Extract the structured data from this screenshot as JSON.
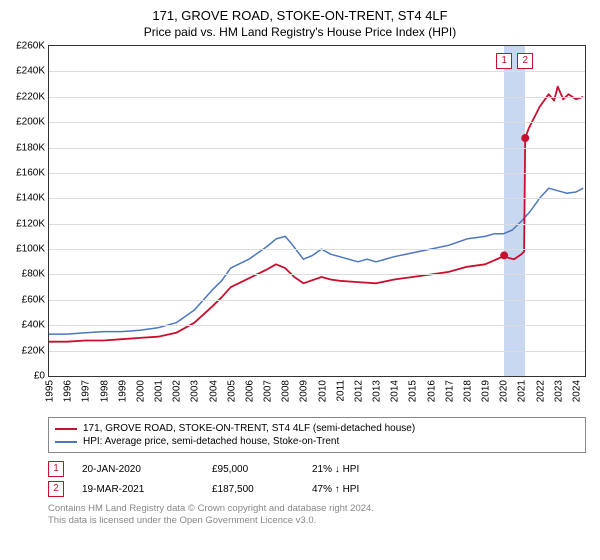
{
  "title_main": "171, GROVE ROAD, STOKE-ON-TRENT, ST4 4LF",
  "title_sub": "Price paid vs. HM Land Registry's House Price Index (HPI)",
  "chart": {
    "ylim": [
      0,
      260000
    ],
    "ytick_step": 20000,
    "y_format_prefix": "£",
    "y_format_suffix": "K",
    "y_format_divisor": 1000,
    "xlim": [
      1995,
      2024.5
    ],
    "x_labels": [
      1995,
      1996,
      1997,
      1998,
      1999,
      2000,
      2001,
      2002,
      2003,
      2004,
      2005,
      2006,
      2007,
      2008,
      2009,
      2010,
      2011,
      2012,
      2013,
      2014,
      2015,
      2016,
      2017,
      2018,
      2019,
      2020,
      2021,
      2022,
      2023,
      2024
    ],
    "highlight_band": {
      "start": 2020.05,
      "end": 2021.21,
      "color": "#c8d8f0"
    },
    "grid_color": "#dddddd",
    "series": [
      {
        "name": "hpi",
        "color": "#4b77be",
        "width": 1.5,
        "points": [
          [
            1995,
            33000
          ],
          [
            1996,
            33000
          ],
          [
            1997,
            34000
          ],
          [
            1998,
            35000
          ],
          [
            1999,
            35000
          ],
          [
            2000,
            36000
          ],
          [
            2001,
            38000
          ],
          [
            2002,
            42000
          ],
          [
            2003,
            52000
          ],
          [
            2004,
            68000
          ],
          [
            2004.5,
            75000
          ],
          [
            2005,
            85000
          ],
          [
            2006,
            92000
          ],
          [
            2007,
            102000
          ],
          [
            2007.5,
            108000
          ],
          [
            2008,
            110000
          ],
          [
            2008.3,
            105000
          ],
          [
            2009,
            92000
          ],
          [
            2009.5,
            95000
          ],
          [
            2010,
            100000
          ],
          [
            2010.5,
            96000
          ],
          [
            2011,
            94000
          ],
          [
            2012,
            90000
          ],
          [
            2012.5,
            92000
          ],
          [
            2013,
            90000
          ],
          [
            2014,
            94000
          ],
          [
            2015,
            97000
          ],
          [
            2016,
            100000
          ],
          [
            2017,
            103000
          ],
          [
            2018,
            108000
          ],
          [
            2019,
            110000
          ],
          [
            2019.5,
            112000
          ],
          [
            2020,
            112000
          ],
          [
            2020.5,
            115000
          ],
          [
            2021,
            122000
          ],
          [
            2021.5,
            130000
          ],
          [
            2022,
            140000
          ],
          [
            2022.5,
            148000
          ],
          [
            2023,
            146000
          ],
          [
            2023.5,
            144000
          ],
          [
            2024,
            145000
          ],
          [
            2024.4,
            148000
          ]
        ]
      },
      {
        "name": "property",
        "color": "#c8102e",
        "width": 1.8,
        "points": [
          [
            1995,
            27000
          ],
          [
            1996,
            27000
          ],
          [
            1997,
            28000
          ],
          [
            1998,
            28000
          ],
          [
            1999,
            29000
          ],
          [
            2000,
            30000
          ],
          [
            2001,
            31000
          ],
          [
            2002,
            34000
          ],
          [
            2003,
            42000
          ],
          [
            2004,
            55000
          ],
          [
            2004.5,
            62000
          ],
          [
            2005,
            70000
          ],
          [
            2006,
            77000
          ],
          [
            2007,
            84000
          ],
          [
            2007.5,
            88000
          ],
          [
            2008,
            85000
          ],
          [
            2008.5,
            78000
          ],
          [
            2009,
            73000
          ],
          [
            2010,
            78000
          ],
          [
            2010.5,
            76000
          ],
          [
            2011,
            75000
          ],
          [
            2012,
            74000
          ],
          [
            2013,
            73000
          ],
          [
            2014,
            76000
          ],
          [
            2015,
            78000
          ],
          [
            2016,
            80000
          ],
          [
            2017,
            82000
          ],
          [
            2018,
            86000
          ],
          [
            2019,
            88000
          ],
          [
            2019.8,
            93000
          ],
          [
            2020.05,
            95000
          ],
          [
            2020.3,
            93000
          ],
          [
            2020.6,
            92000
          ],
          [
            2021,
            96000
          ],
          [
            2021.15,
            98000
          ],
          [
            2021.21,
            187500
          ],
          [
            2021.4,
            195000
          ],
          [
            2022,
            212000
          ],
          [
            2022.5,
            222000
          ],
          [
            2022.8,
            217000
          ],
          [
            2023,
            228000
          ],
          [
            2023.3,
            218000
          ],
          [
            2023.6,
            222000
          ],
          [
            2024,
            218000
          ],
          [
            2024.4,
            220000
          ]
        ]
      }
    ],
    "sale_markers": [
      {
        "n": "1",
        "x": 2020.05,
        "y": 95000,
        "color": "#c8102e",
        "label_y": 248000
      },
      {
        "n": "2",
        "x": 2021.21,
        "y": 187500,
        "color": "#c8102e",
        "label_y": 248000
      }
    ]
  },
  "legend": [
    {
      "color": "#c8102e",
      "label": "171, GROVE ROAD, STOKE-ON-TRENT, ST4 4LF (semi-detached house)"
    },
    {
      "color": "#4b77be",
      "label": "HPI: Average price, semi-detached house, Stoke-on-Trent"
    }
  ],
  "sales": [
    {
      "n": "1",
      "color": "#c8102e",
      "date": "20-JAN-2020",
      "price": "£95,000",
      "diff": "21% ↓ HPI"
    },
    {
      "n": "2",
      "color": "#c8102e",
      "date": "19-MAR-2021",
      "price": "£187,500",
      "diff": "47% ↑ HPI"
    }
  ],
  "footer_line1": "Contains HM Land Registry data © Crown copyright and database right 2024.",
  "footer_line2": "This data is licensed under the Open Government Licence v3.0."
}
